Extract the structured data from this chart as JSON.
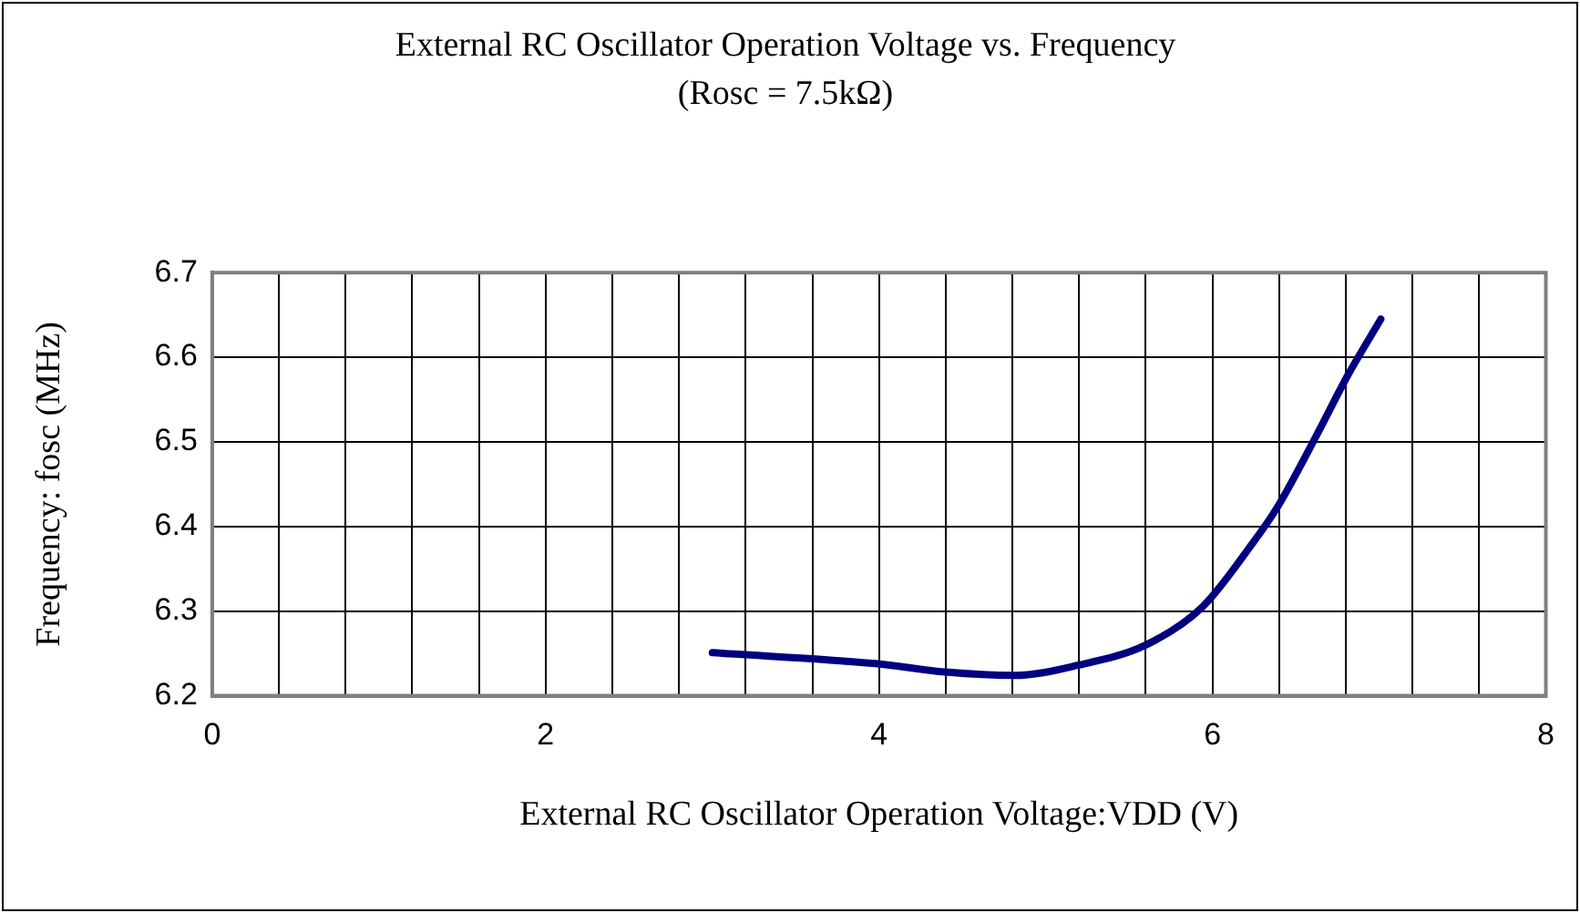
{
  "chart_data": {
    "type": "line",
    "title": "External RC Oscillator Operation Voltage vs. Frequency",
    "subtitle": "(Rosc = 7.5kΩ)",
    "xlabel": "External RC Oscillator Operation Voltage:VDD (V)",
    "ylabel": "Frequency: fosc (MHz)",
    "x": [
      3,
      3.98,
      4.4,
      4.81,
      5.19,
      5.6,
      5.94,
      6.24,
      6.39,
      6.62,
      6.81,
      7.01
    ],
    "series": [
      {
        "color": "#000080",
        "values": [
          6.251,
          6.238,
          6.228,
          6.224,
          6.236,
          6.26,
          6.305,
          6.38,
          6.423,
          6.506,
          6.578,
          6.645
        ]
      }
    ],
    "xlim": [
      0,
      8
    ],
    "xticks": [
      0,
      {
        "value": 0.4,
        "label": null
      },
      {
        "value": 0.8,
        "label": null
      },
      {
        "value": 1.2,
        "label": null
      },
      {
        "value": 1.6,
        "label": null
      },
      2,
      {
        "value": 2.4,
        "label": null
      },
      {
        "value": 2.8,
        "label": null
      },
      {
        "value": 3.2,
        "label": null
      },
      {
        "value": 3.6,
        "label": null
      },
      4,
      {
        "value": 4.4,
        "label": null
      },
      {
        "value": 4.8,
        "label": null
      },
      {
        "value": 5.2,
        "label": null
      },
      {
        "value": 5.6,
        "label": null
      },
      6,
      {
        "value": 6.4,
        "label": null
      },
      {
        "value": 6.8,
        "label": null
      },
      {
        "value": 7.2,
        "label": null
      },
      {
        "value": 7.6,
        "label": null
      },
      8
    ],
    "ylim": [
      6.2,
      6.7
    ],
    "yticks": [
      6.2,
      6.3,
      6.4,
      6.5,
      6.6,
      6.7
    ],
    "grid": true,
    "legend": false,
    "marker": "none",
    "line_style": "solid"
  }
}
